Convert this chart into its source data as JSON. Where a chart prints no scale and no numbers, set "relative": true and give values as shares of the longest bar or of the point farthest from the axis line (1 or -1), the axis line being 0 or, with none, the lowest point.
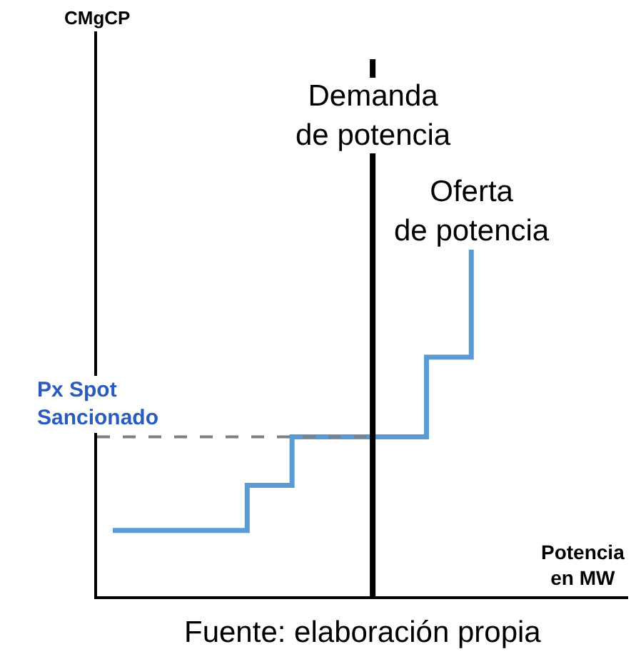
{
  "chart_data": {
    "type": "step",
    "relative": true,
    "xlabel": "Potencia\nen MW",
    "categories": [
      null,
      null,
      null,
      null,
      null,
      null,
      null,
      null,
      null
    ],
    "grid": false,
    "legend": false,
    "marker": "none",
    "line_style": "solid",
    "series": [
      {
        "name": "Oferta\nde potencia",
        "color": "#5b9bd5",
        "values": [
          0.19,
          0.19,
          0.19,
          0.32,
          0.46,
          0.46,
          0.46,
          0.69,
          1.0
        ]
      }
    ],
    "ref_lines": [
      {
        "axis": "y",
        "value": 0.46,
        "label": "Px Spot\nSancionado",
        "color": "#7f7f7f",
        "line_style": "dashed"
      }
    ],
    "annotations": [
      "CMgCP",
      "Demanda\nde potencia",
      "Fuente: elaboración propia"
    ]
  }
}
